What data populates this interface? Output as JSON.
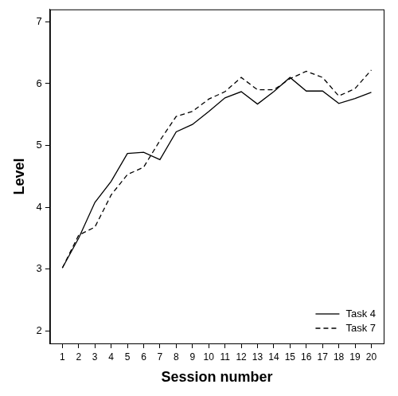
{
  "chart_data": {
    "type": "line",
    "x_label": "Session number",
    "y_label": "Level",
    "x": [
      1,
      2,
      3,
      4,
      5,
      6,
      7,
      8,
      9,
      10,
      11,
      12,
      13,
      14,
      15,
      16,
      17,
      18,
      19,
      20
    ],
    "series": [
      {
        "name": "Task 4",
        "color": "#000000",
        "line_style": "solid",
        "values": [
          3.02,
          3.5,
          4.08,
          4.42,
          4.87,
          4.89,
          4.77,
          5.22,
          5.34,
          5.55,
          5.77,
          5.87,
          5.67,
          5.87,
          6.1,
          5.88,
          5.88,
          5.68,
          5.76,
          5.86
        ]
      },
      {
        "name": "Task 7",
        "color": "#000000",
        "line_style": "dashed",
        "values": [
          3.02,
          3.55,
          3.68,
          4.2,
          4.53,
          4.65,
          5.08,
          5.47,
          5.55,
          5.75,
          5.87,
          6.1,
          5.9,
          5.9,
          6.08,
          6.2,
          6.1,
          5.8,
          5.92,
          6.22
        ]
      }
    ],
    "xlim": [
      0.24,
      20.76
    ],
    "xticks": [
      1,
      2,
      3,
      4,
      5,
      6,
      7,
      8,
      9,
      10,
      11,
      12,
      13,
      14,
      15,
      16,
      17,
      18,
      19,
      20
    ],
    "ylim": [
      1.8,
      7.2
    ],
    "yticks": [
      2,
      3,
      4,
      5,
      6,
      7
    ],
    "grid": false,
    "legend": "bottom right"
  }
}
